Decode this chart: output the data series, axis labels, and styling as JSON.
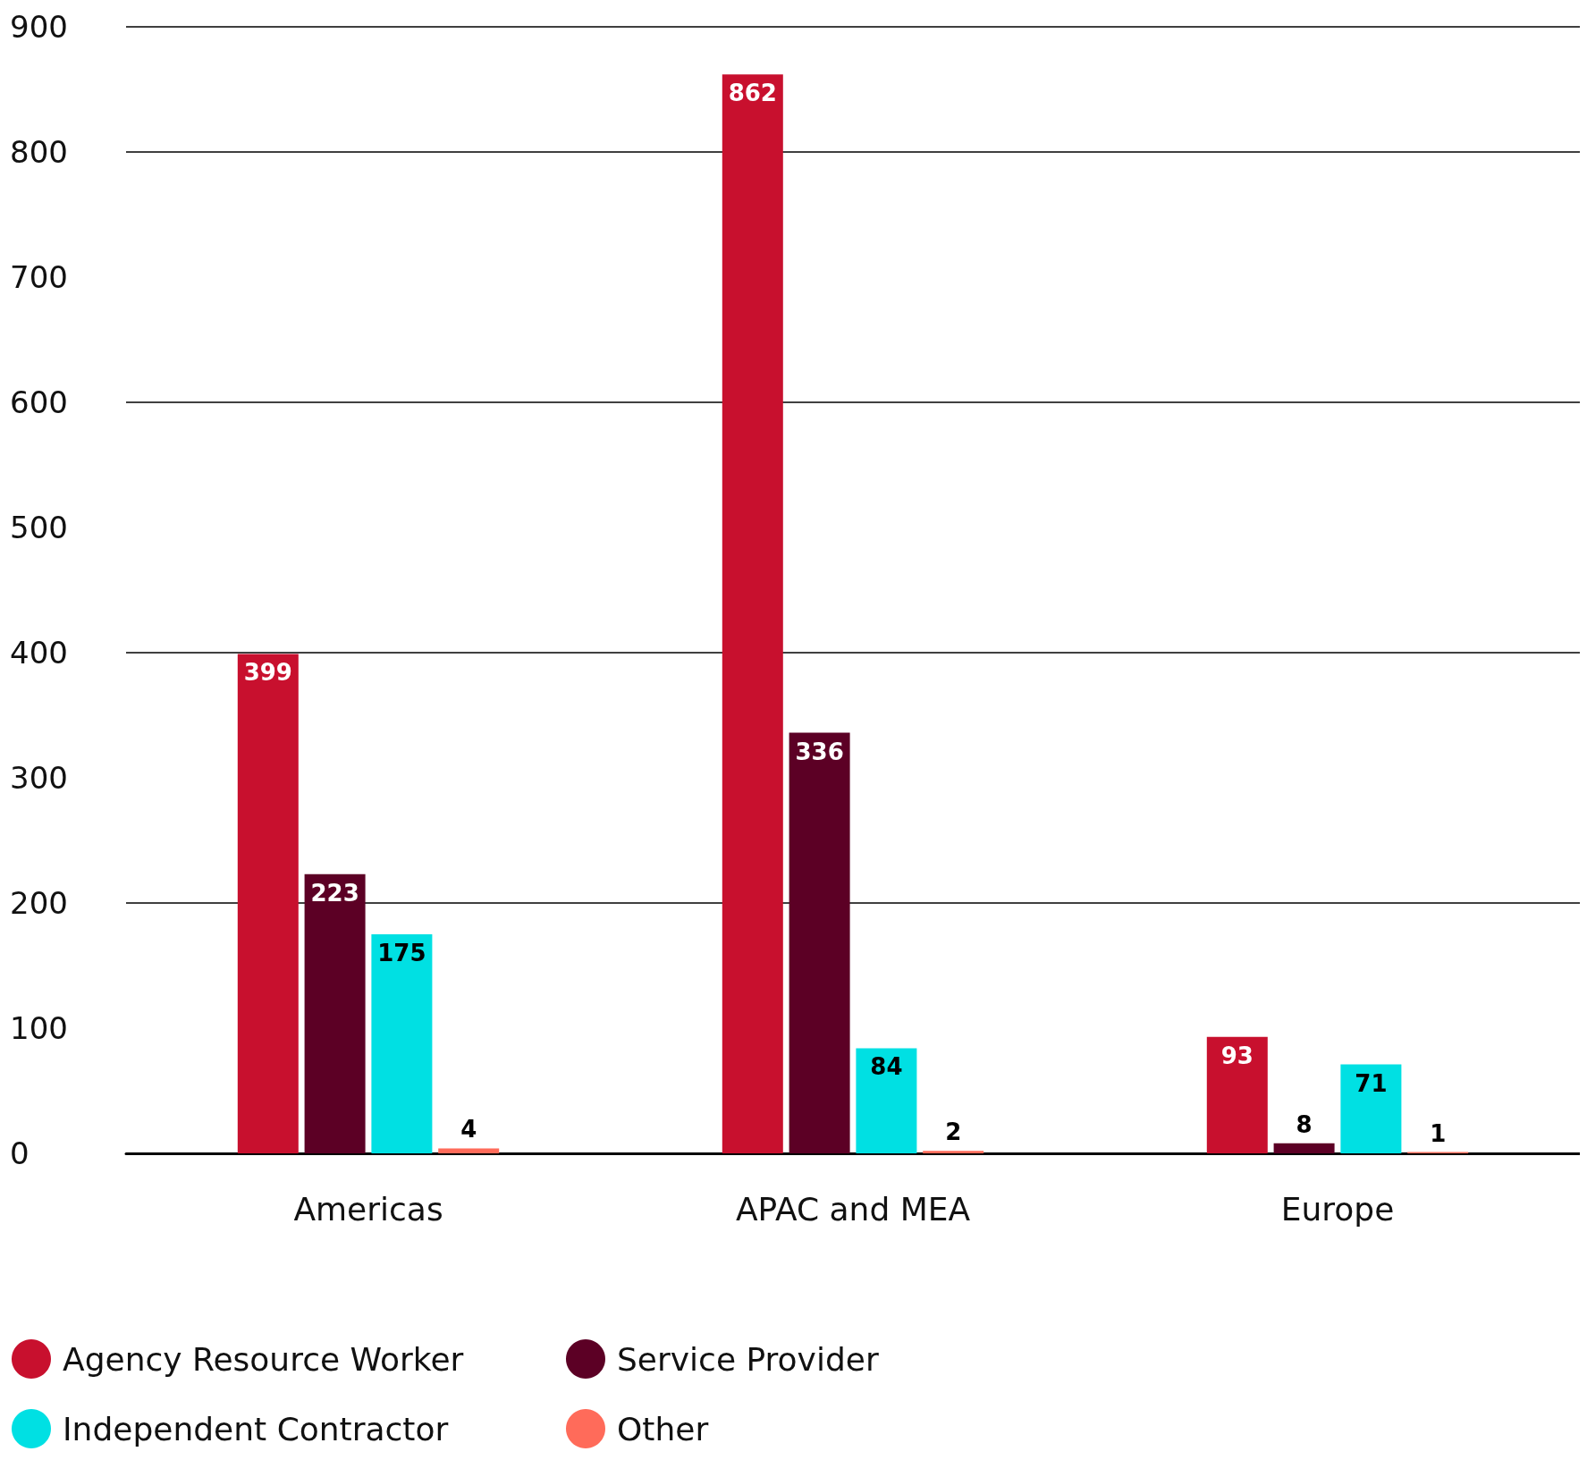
{
  "chart_data": {
    "type": "bar",
    "categories": [
      "Americas",
      "APAC and MEA",
      "Europe"
    ],
    "series": [
      {
        "name": "Agency Resource Worker",
        "color": "#c8102e",
        "values": [
          399,
          862,
          93
        ]
      },
      {
        "name": "Service Provider",
        "color": "#5c0025",
        "values": [
          223,
          336,
          8
        ]
      },
      {
        "name": "Independent Contractor",
        "color": "#00e0e3",
        "values": [
          175,
          84,
          71
        ]
      },
      {
        "name": "Other",
        "color": "#ff6b5a",
        "values": [
          4,
          2,
          1
        ]
      }
    ],
    "ylim": [
      0,
      900
    ],
    "yticks": [
      0,
      100,
      200,
      300,
      400,
      500,
      600,
      700,
      800,
      900
    ],
    "grid": "y",
    "legend": "bottom left",
    "data_labels": true
  }
}
